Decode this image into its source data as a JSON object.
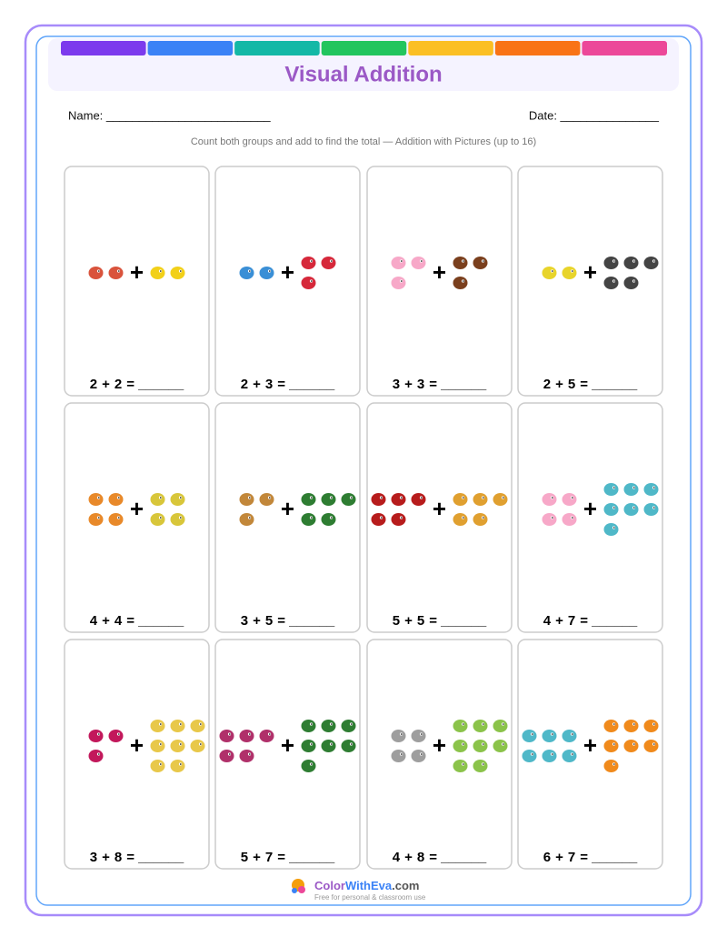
{
  "header": {
    "title": "Visual Addition",
    "name_label": "Name: _________________________",
    "date_label": "Date: _______________",
    "instructions": "Count both groups and add to find the total — Addition with Pictures (up to 16)",
    "stripe_colors": [
      "#7c3aed",
      "#3b82f6",
      "#14b8a6",
      "#22c55e",
      "#fbbf24",
      "#f97316",
      "#ec4899"
    ]
  },
  "operator": "+",
  "answer_blank": "= ______",
  "problems": [
    {
      "a": 2,
      "a_color": "#d9533c",
      "b": 2,
      "b_color": "#f2d019"
    },
    {
      "a": 2,
      "a_color": "#3a8fd6",
      "b": 3,
      "b_color": "#d6283a"
    },
    {
      "a": 3,
      "a_color": "#f7a8c8",
      "b": 3,
      "b_color": "#7a3f1d"
    },
    {
      "a": 2,
      "a_color": "#e8d42a",
      "b": 5,
      "b_color": "#444444"
    },
    {
      "a": 4,
      "a_color": "#e8892a",
      "b": 4,
      "b_color": "#d8c63a"
    },
    {
      "a": 3,
      "a_color": "#c2873a",
      "b": 5,
      "b_color": "#2e7d32"
    },
    {
      "a": 5,
      "a_color": "#b71c1c",
      "b": 5,
      "b_color": "#e0a030"
    },
    {
      "a": 4,
      "a_color": "#f7a8c8",
      "b": 7,
      "b_color": "#4fb8c8"
    },
    {
      "a": 3,
      "a_color": "#c2185b",
      "b": 8,
      "b_color": "#e8c84a"
    },
    {
      "a": 5,
      "a_color": "#b0306a",
      "b": 7,
      "b_color": "#2e7d32"
    },
    {
      "a": 4,
      "a_color": "#9e9e9e",
      "b": 8,
      "b_color": "#8bc34a"
    },
    {
      "a": 6,
      "a_color": "#4fb8c8",
      "b": 7,
      "b_color": "#f08a1c"
    }
  ],
  "footer": {
    "brand": [
      "Color",
      "WithEva",
      ".com"
    ],
    "tagline": "Free for personal & classroom use"
  }
}
